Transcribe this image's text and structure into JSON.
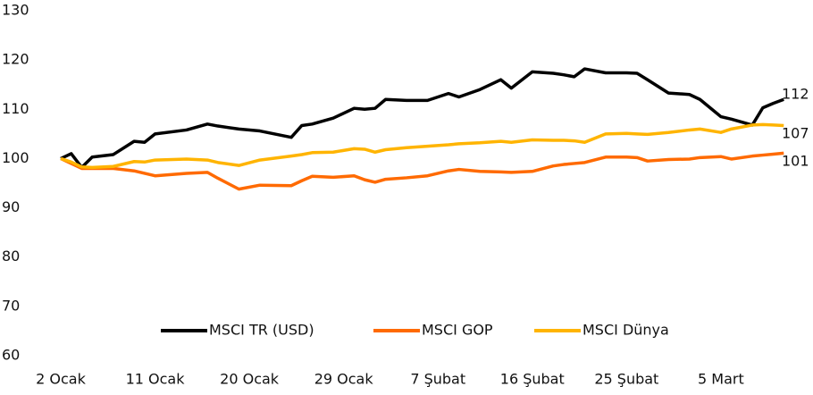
{
  "chart_data": {
    "type": "line",
    "x": [
      0,
      1,
      2,
      3,
      5,
      7,
      8,
      9,
      12,
      14,
      15,
      17,
      19,
      22,
      23,
      24,
      26,
      28,
      29,
      30,
      31,
      33,
      35,
      37,
      38,
      40,
      42,
      43,
      45,
      47,
      48,
      49,
      50,
      52,
      54,
      55,
      56,
      58,
      60,
      61,
      63,
      64,
      66,
      67,
      68,
      69
    ],
    "xlim": [
      0,
      70
    ],
    "xticks": [
      {
        "value": 0,
        "label": "2 Ocak"
      },
      {
        "value": 9,
        "label": "11 Ocak"
      },
      {
        "value": 18,
        "label": "20 Ocak"
      },
      {
        "value": 27,
        "label": "29 Ocak"
      },
      {
        "value": 36,
        "label": "7 Şubat"
      },
      {
        "value": 45,
        "label": "16 Şubat"
      },
      {
        "value": 54,
        "label": "25 Şubat"
      },
      {
        "value": 63,
        "label": "5 Mart"
      }
    ],
    "ylim": [
      60,
      130
    ],
    "yticks": [
      60,
      70,
      80,
      90,
      100,
      110,
      120,
      130
    ],
    "legend": "bottom",
    "series": [
      {
        "name": "MSCI TR (USD)",
        "color": "#000000",
        "end_label": 112,
        "values": [
          100,
          101,
          98.2,
          100.3,
          100.8,
          103.5,
          103.3,
          105,
          105.8,
          107,
          106.6,
          106,
          105.6,
          104.3,
          106.7,
          107,
          108.2,
          110.2,
          110,
          110.2,
          112,
          111.8,
          111.8,
          113.2,
          112.5,
          114,
          116,
          114.3,
          117.6,
          117.3,
          117,
          116.6,
          118.2,
          117.4,
          117.4,
          117.3,
          116,
          113.3,
          113,
          112,
          108.5,
          108,
          106.8,
          110.3,
          111.2,
          112
        ]
      },
      {
        "name": "MSCI GOP",
        "color": "#ff6a00",
        "end_label": 101,
        "values": [
          100,
          99,
          98,
          98,
          98,
          97.5,
          97,
          96.5,
          97,
          97.2,
          96,
          93.8,
          94.6,
          94.5,
          95.5,
          96.4,
          96.2,
          96.5,
          95.7,
          95.2,
          95.8,
          96.1,
          96.5,
          97.5,
          97.8,
          97.4,
          97.3,
          97.2,
          97.4,
          98.5,
          98.8,
          99,
          99.2,
          100.3,
          100.3,
          100.2,
          99.5,
          99.8,
          99.9,
          100.2,
          100.4,
          99.9,
          100.5,
          100.7,
          100.9,
          101.1
        ]
      },
      {
        "name": "MSCI Dünya",
        "color": "#ffb400",
        "end_label": 107,
        "values": [
          100,
          99.3,
          98.3,
          98.2,
          98.4,
          99.4,
          99.3,
          99.7,
          99.9,
          99.7,
          99.2,
          98.6,
          99.7,
          100.5,
          100.8,
          101.2,
          101.3,
          102,
          101.9,
          101.3,
          101.8,
          102.2,
          102.5,
          102.8,
          103,
          103.2,
          103.5,
          103.3,
          103.8,
          103.7,
          103.7,
          103.6,
          103.3,
          105,
          105.1,
          105,
          104.9,
          105.3,
          105.8,
          106,
          105.3,
          106,
          106.8,
          106.9,
          106.8,
          106.7
        ]
      }
    ]
  }
}
